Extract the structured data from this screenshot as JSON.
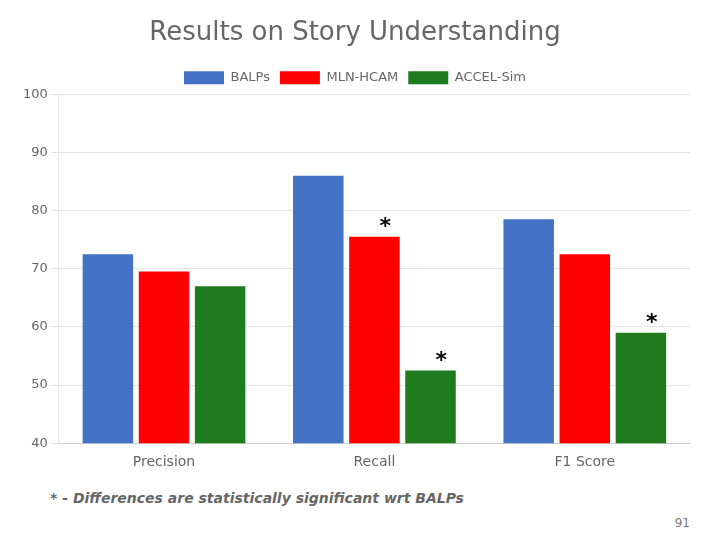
{
  "chart_data": {
    "type": "bar",
    "title": "Results on Story Understanding",
    "categories": [
      "Precision",
      "Recall",
      "F1 Score"
    ],
    "series": [
      {
        "name": "BALPs",
        "color": "#4472C4",
        "values": [
          72.5,
          86,
          78.5
        ]
      },
      {
        "name": "MLN-HCAM",
        "color": "#FF0000",
        "values": [
          69.5,
          75.5,
          72.5
        ]
      },
      {
        "name": "ACCEL-Sim",
        "color": "#1E7B1E",
        "values": [
          67,
          52.5,
          59
        ]
      }
    ],
    "ylim": [
      40,
      100
    ],
    "yticks": [
      40,
      50,
      60,
      70,
      80,
      90,
      100
    ],
    "grid": true,
    "legend": "top",
    "annotations": [
      {
        "text": "*",
        "series": "MLN-HCAM",
        "category": "Recall"
      },
      {
        "text": "*",
        "series": "ACCEL-Sim",
        "category": "Recall"
      },
      {
        "text": "*",
        "series": "ACCEL-Sim",
        "category": "F1 Score"
      }
    ],
    "footnote": "* - Differences are statistically significant wrt BALPs",
    "page_number": "91"
  }
}
